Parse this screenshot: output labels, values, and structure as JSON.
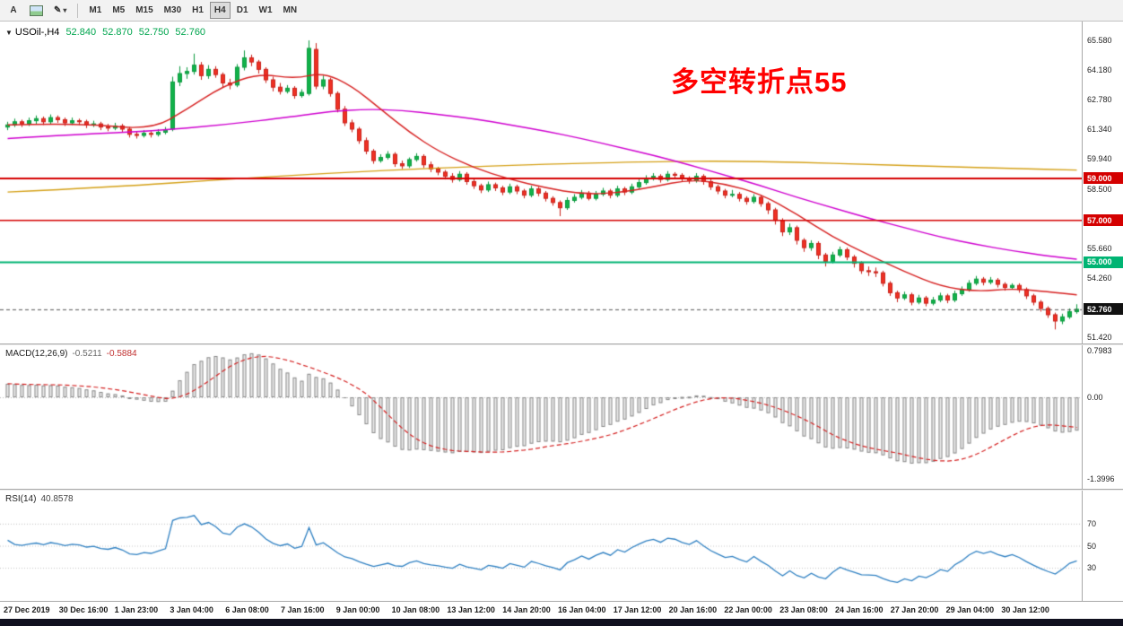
{
  "toolbar": {
    "tool_a": "A",
    "timeframes": [
      "M1",
      "M5",
      "M15",
      "M30",
      "H1",
      "H4",
      "D1",
      "W1",
      "MN"
    ],
    "active_timeframe": "H4"
  },
  "chart_data": {
    "type": "candlestick",
    "title": "USOil-,H4",
    "ohlc": {
      "open": "52.840",
      "high": "52.870",
      "low": "52.750",
      "close": "52.760"
    },
    "annotation": {
      "text": "多空转折点55",
      "color": "#ff0000"
    },
    "y_range": {
      "max": 66.48,
      "min": 51.13
    },
    "y_axis_labels": [
      "65.580",
      "64.180",
      "62.780",
      "61.340",
      "59.940",
      "58.500",
      "55.660",
      "54.260",
      "51.420"
    ],
    "levels": [
      {
        "value": 59.0,
        "label": "59.000",
        "color": "#d40000",
        "width": 2
      },
      {
        "value": 57.0,
        "label": "57.000",
        "color": "#d40000",
        "width": 1.5
      },
      {
        "value": 55.0,
        "label": "55.000",
        "color": "#00b473",
        "width": 2
      }
    ],
    "current_price": {
      "value": 52.76,
      "label": "52.760",
      "badge_color": "#111111"
    },
    "colors": {
      "up": "#12b24a",
      "up_border": "#0b9a3e",
      "down": "#ef3124",
      "down_border": "#c9211a",
      "ma_fast": "#d62020",
      "ma_slow": "#cf00cf",
      "ma_long": "#d4a017"
    },
    "candles": [
      [
        61.45,
        61.7,
        61.3,
        61.55
      ],
      [
        61.55,
        61.85,
        61.45,
        61.7
      ],
      [
        61.7,
        61.8,
        61.45,
        61.6
      ],
      [
        61.6,
        61.9,
        61.5,
        61.75
      ],
      [
        61.75,
        62.0,
        61.6,
        61.85
      ],
      [
        61.85,
        61.95,
        61.55,
        61.7
      ],
      [
        61.7,
        62.05,
        61.6,
        61.9
      ],
      [
        61.9,
        62.0,
        61.65,
        61.8
      ],
      [
        61.8,
        61.9,
        61.5,
        61.65
      ],
      [
        61.65,
        61.9,
        61.55,
        61.75
      ],
      [
        61.75,
        61.85,
        61.55,
        61.7
      ],
      [
        61.7,
        61.8,
        61.4,
        61.55
      ],
      [
        61.55,
        61.75,
        61.45,
        61.6
      ],
      [
        61.6,
        61.7,
        61.3,
        61.45
      ],
      [
        61.45,
        61.6,
        61.25,
        61.4
      ],
      [
        61.4,
        61.65,
        61.3,
        61.5
      ],
      [
        61.5,
        61.6,
        61.2,
        61.35
      ],
      [
        61.35,
        61.45,
        60.95,
        61.1
      ],
      [
        61.1,
        61.25,
        60.9,
        61.05
      ],
      [
        61.05,
        61.3,
        60.95,
        61.15
      ],
      [
        61.15,
        61.25,
        60.95,
        61.1
      ],
      [
        61.1,
        61.35,
        61.0,
        61.2
      ],
      [
        61.2,
        61.45,
        61.1,
        61.3
      ],
      [
        61.35,
        63.85,
        61.25,
        63.6
      ],
      [
        63.6,
        64.35,
        63.4,
        64.0
      ],
      [
        64.0,
        64.3,
        63.75,
        64.1
      ],
      [
        64.1,
        64.95,
        63.95,
        64.4
      ],
      [
        64.4,
        64.55,
        63.7,
        63.9
      ],
      [
        63.9,
        64.4,
        63.75,
        64.2
      ],
      [
        64.2,
        64.35,
        63.8,
        63.95
      ],
      [
        63.95,
        64.05,
        63.35,
        63.55
      ],
      [
        63.55,
        63.75,
        63.25,
        63.45
      ],
      [
        63.45,
        64.45,
        63.35,
        64.3
      ],
      [
        64.3,
        65.1,
        64.15,
        64.75
      ],
      [
        64.75,
        64.9,
        64.35,
        64.55
      ],
      [
        64.55,
        64.65,
        64.0,
        64.2
      ],
      [
        64.2,
        64.3,
        63.55,
        63.7
      ],
      [
        63.7,
        63.85,
        63.15,
        63.35
      ],
      [
        63.35,
        63.55,
        63.0,
        63.15
      ],
      [
        63.15,
        63.45,
        63.05,
        63.3
      ],
      [
        63.3,
        63.4,
        62.8,
        62.95
      ],
      [
        62.95,
        63.25,
        62.85,
        63.1
      ],
      [
        63.05,
        65.58,
        62.95,
        65.2
      ],
      [
        65.15,
        65.45,
        63.25,
        63.4
      ],
      [
        63.4,
        63.9,
        63.25,
        63.7
      ],
      [
        63.7,
        63.8,
        62.9,
        63.05
      ],
      [
        63.05,
        63.15,
        62.15,
        62.3
      ],
      [
        62.3,
        62.45,
        61.5,
        61.65
      ],
      [
        61.65,
        61.8,
        61.2,
        61.35
      ],
      [
        61.35,
        61.45,
        60.65,
        60.8
      ],
      [
        60.8,
        60.95,
        60.15,
        60.3
      ],
      [
        60.3,
        60.4,
        59.7,
        59.85
      ],
      [
        59.85,
        60.15,
        59.75,
        60.0
      ],
      [
        60.0,
        60.3,
        59.9,
        60.15
      ],
      [
        60.15,
        60.25,
        59.55,
        59.7
      ],
      [
        59.7,
        59.85,
        59.45,
        59.6
      ],
      [
        59.6,
        60.0,
        59.5,
        59.9
      ],
      [
        59.9,
        60.2,
        59.8,
        60.05
      ],
      [
        60.05,
        60.15,
        59.5,
        59.65
      ],
      [
        59.65,
        59.8,
        59.3,
        59.45
      ],
      [
        59.45,
        59.55,
        59.15,
        59.3
      ],
      [
        59.3,
        59.4,
        58.95,
        59.1
      ],
      [
        59.1,
        59.25,
        58.8,
        58.95
      ],
      [
        58.95,
        59.35,
        58.85,
        59.2
      ],
      [
        59.2,
        59.3,
        58.7,
        58.85
      ],
      [
        58.85,
        58.95,
        58.5,
        58.65
      ],
      [
        58.65,
        58.75,
        58.3,
        58.45
      ],
      [
        58.45,
        58.85,
        58.35,
        58.7
      ],
      [
        58.7,
        58.8,
        58.4,
        58.55
      ],
      [
        58.55,
        58.65,
        58.2,
        58.35
      ],
      [
        58.35,
        58.75,
        58.25,
        58.6
      ],
      [
        58.6,
        58.7,
        58.25,
        58.4
      ],
      [
        58.4,
        58.5,
        58.05,
        58.2
      ],
      [
        58.2,
        58.65,
        58.1,
        58.5
      ],
      [
        58.5,
        58.6,
        58.15,
        58.3
      ],
      [
        58.3,
        58.4,
        57.9,
        58.05
      ],
      [
        58.05,
        58.15,
        57.7,
        57.85
      ],
      [
        57.85,
        57.95,
        57.2,
        57.6
      ],
      [
        57.6,
        58.1,
        57.5,
        57.95
      ],
      [
        57.95,
        58.25,
        57.85,
        58.1
      ],
      [
        58.1,
        58.45,
        58.0,
        58.3
      ],
      [
        58.3,
        58.4,
        57.95,
        58.05
      ],
      [
        58.05,
        58.4,
        57.95,
        58.25
      ],
      [
        58.25,
        58.55,
        58.15,
        58.4
      ],
      [
        58.4,
        58.5,
        58.05,
        58.2
      ],
      [
        58.2,
        58.65,
        58.1,
        58.5
      ],
      [
        58.5,
        58.6,
        58.2,
        58.35
      ],
      [
        58.35,
        58.75,
        58.25,
        58.6
      ],
      [
        58.6,
        58.95,
        58.5,
        58.8
      ],
      [
        58.8,
        59.15,
        58.7,
        59.0
      ],
      [
        59.0,
        59.25,
        58.9,
        59.1
      ],
      [
        59.1,
        59.2,
        58.8,
        58.95
      ],
      [
        58.95,
        59.35,
        58.85,
        59.2
      ],
      [
        59.2,
        59.3,
        59.0,
        59.15
      ],
      [
        59.15,
        59.25,
        58.85,
        59.0
      ],
      [
        59.0,
        59.1,
        58.75,
        58.9
      ],
      [
        58.9,
        59.25,
        58.8,
        59.1
      ],
      [
        59.1,
        59.2,
        58.7,
        58.85
      ],
      [
        58.85,
        58.95,
        58.45,
        58.6
      ],
      [
        58.6,
        58.7,
        58.25,
        58.4
      ],
      [
        58.4,
        58.5,
        58.05,
        58.2
      ],
      [
        58.2,
        58.45,
        58.1,
        58.24
      ],
      [
        58.24,
        58.35,
        57.9,
        58.05
      ],
      [
        58.05,
        58.15,
        57.75,
        57.9
      ],
      [
        57.9,
        58.25,
        57.8,
        58.1
      ],
      [
        58.1,
        58.2,
        57.65,
        57.8
      ],
      [
        57.8,
        57.9,
        57.3,
        57.5
      ],
      [
        57.5,
        57.6,
        56.8,
        57.0
      ],
      [
        57.0,
        57.1,
        56.25,
        56.45
      ],
      [
        56.45,
        56.85,
        56.3,
        56.65
      ],
      [
        56.65,
        56.75,
        55.85,
        56.05
      ],
      [
        56.05,
        56.15,
        55.5,
        55.7
      ],
      [
        55.7,
        56.05,
        55.55,
        55.9
      ],
      [
        55.9,
        56.0,
        55.15,
        55.35
      ],
      [
        55.35,
        55.45,
        54.8,
        55.05
      ],
      [
        55.05,
        55.5,
        54.95,
        55.35
      ],
      [
        55.35,
        55.75,
        55.25,
        55.6
      ],
      [
        55.6,
        55.7,
        55.1,
        55.25
      ],
      [
        55.25,
        55.35,
        54.75,
        54.95
      ],
      [
        54.95,
        55.05,
        54.45,
        54.6
      ],
      [
        54.6,
        54.8,
        54.35,
        54.55
      ],
      [
        54.55,
        54.75,
        54.3,
        54.5
      ],
      [
        54.5,
        54.6,
        53.85,
        54.0
      ],
      [
        54.0,
        54.1,
        53.4,
        53.55
      ],
      [
        53.55,
        53.65,
        53.1,
        53.3
      ],
      [
        53.3,
        53.6,
        53.2,
        53.45
      ],
      [
        53.45,
        53.55,
        52.95,
        53.1
      ],
      [
        53.1,
        53.45,
        53.0,
        53.3
      ],
      [
        53.3,
        53.4,
        52.9,
        53.05
      ],
      [
        53.05,
        53.35,
        52.95,
        53.2
      ],
      [
        53.2,
        53.55,
        53.1,
        53.4
      ],
      [
        53.4,
        53.5,
        53.05,
        53.2
      ],
      [
        53.2,
        53.65,
        53.1,
        53.5
      ],
      [
        53.5,
        53.85,
        53.4,
        53.7
      ],
      [
        53.7,
        54.15,
        53.6,
        54.0
      ],
      [
        54.0,
        54.35,
        53.9,
        54.2
      ],
      [
        54.2,
        54.3,
        53.9,
        54.05
      ],
      [
        54.05,
        54.3,
        53.95,
        54.15
      ],
      [
        54.15,
        54.25,
        53.8,
        53.95
      ],
      [
        53.95,
        54.05,
        53.65,
        53.8
      ],
      [
        53.8,
        54.0,
        53.7,
        53.9
      ],
      [
        53.9,
        54.0,
        53.55,
        53.7
      ],
      [
        53.7,
        53.8,
        53.25,
        53.4
      ],
      [
        53.4,
        53.5,
        52.95,
        53.1
      ],
      [
        53.1,
        53.2,
        52.65,
        52.8
      ],
      [
        52.8,
        52.9,
        52.35,
        52.5
      ],
      [
        52.5,
        52.6,
        51.8,
        52.2
      ],
      [
        52.2,
        52.55,
        52.05,
        52.4
      ],
      [
        52.4,
        52.8,
        52.3,
        52.65
      ],
      [
        52.65,
        53.0,
        52.55,
        52.76
      ]
    ],
    "ma_fast_red": [
      [
        0,
        61.55
      ],
      [
        10,
        61.65
      ],
      [
        20,
        61.3
      ],
      [
        25,
        62.3
      ],
      [
        30,
        63.4
      ],
      [
        35,
        64.0
      ],
      [
        40,
        63.75
      ],
      [
        44,
        64.05
      ],
      [
        48,
        63.4
      ],
      [
        52,
        62.3
      ],
      [
        56,
        61.2
      ],
      [
        60,
        60.3
      ],
      [
        65,
        59.5
      ],
      [
        70,
        58.95
      ],
      [
        75,
        58.55
      ],
      [
        80,
        58.25
      ],
      [
        85,
        58.3
      ],
      [
        90,
        58.6
      ],
      [
        95,
        58.95
      ],
      [
        100,
        58.75
      ],
      [
        105,
        58.25
      ],
      [
        110,
        57.3
      ],
      [
        115,
        56.2
      ],
      [
        120,
        55.35
      ],
      [
        125,
        54.55
      ],
      [
        130,
        53.85
      ],
      [
        135,
        53.6
      ],
      [
        140,
        53.75
      ],
      [
        145,
        53.6
      ],
      [
        149,
        53.45
      ]
    ],
    "ma_slow_magenta": [
      [
        0,
        60.9
      ],
      [
        10,
        61.1
      ],
      [
        20,
        61.25
      ],
      [
        30,
        61.55
      ],
      [
        40,
        61.95
      ],
      [
        45,
        62.2
      ],
      [
        50,
        62.3
      ],
      [
        55,
        62.25
      ],
      [
        60,
        62.05
      ],
      [
        65,
        61.85
      ],
      [
        70,
        61.55
      ],
      [
        75,
        61.25
      ],
      [
        80,
        60.9
      ],
      [
        85,
        60.5
      ],
      [
        90,
        60.1
      ],
      [
        95,
        59.65
      ],
      [
        100,
        59.15
      ],
      [
        105,
        58.65
      ],
      [
        110,
        58.1
      ],
      [
        115,
        57.6
      ],
      [
        120,
        57.1
      ],
      [
        125,
        56.65
      ],
      [
        130,
        56.2
      ],
      [
        135,
        55.85
      ],
      [
        140,
        55.55
      ],
      [
        145,
        55.3
      ],
      [
        149,
        55.15
      ]
    ],
    "ma_long_orange": [
      [
        0,
        58.35
      ],
      [
        15,
        58.6
      ],
      [
        30,
        58.95
      ],
      [
        45,
        59.25
      ],
      [
        60,
        59.5
      ],
      [
        75,
        59.68
      ],
      [
        90,
        59.8
      ],
      [
        100,
        59.83
      ],
      [
        110,
        59.77
      ],
      [
        120,
        59.67
      ],
      [
        130,
        59.57
      ],
      [
        140,
        59.47
      ],
      [
        149,
        59.4
      ]
    ],
    "x_labels": [
      "27 Dec 2019",
      "30 Dec 16:00",
      "1 Jan 23:00",
      "3 Jan 04:00",
      "6 Jan 08:00",
      "7 Jan 16:00",
      "9 Jan 00:00",
      "10 Jan 08:00",
      "13 Jan 12:00",
      "14 Jan 20:00",
      "16 Jan 04:00",
      "17 Jan 12:00",
      "20 Jan 16:00",
      "22 Jan 00:00",
      "23 Jan 08:00",
      "24 Jan 16:00",
      "27 Jan 20:00",
      "29 Jan 04:00",
      "30 Jan 12:00"
    ],
    "indicators": {
      "macd": {
        "label": "MACD(12,26,9)",
        "value_main": "-0.5211",
        "value_signal": "-0.5884",
        "params": {
          "fast": 12,
          "slow": 26,
          "signal": 9
        },
        "y_range": {
          "max": 0.8904,
          "min": -1.566
        },
        "axis_labels": [
          {
            "text": "0.7983",
            "value": 0.7983
          },
          {
            "text": "0.00",
            "value": 0
          },
          {
            "text": "-1.3996",
            "value": -1.3996
          }
        ],
        "signal_color": "#d42222",
        "hist_fill": "#ececec",
        "hist_border": "#8a8a8a"
      },
      "rsi": {
        "label": "RSI(14)",
        "value": "40.8578",
        "period": 14,
        "line_color": "#2f80c2",
        "levels": [
          {
            "text": "70",
            "value": 70
          },
          {
            "text": "50",
            "value": 50
          },
          {
            "text": "30",
            "value": 30
          }
        ],
        "y_range": {
          "max": 100,
          "min": 0
        }
      }
    }
  }
}
